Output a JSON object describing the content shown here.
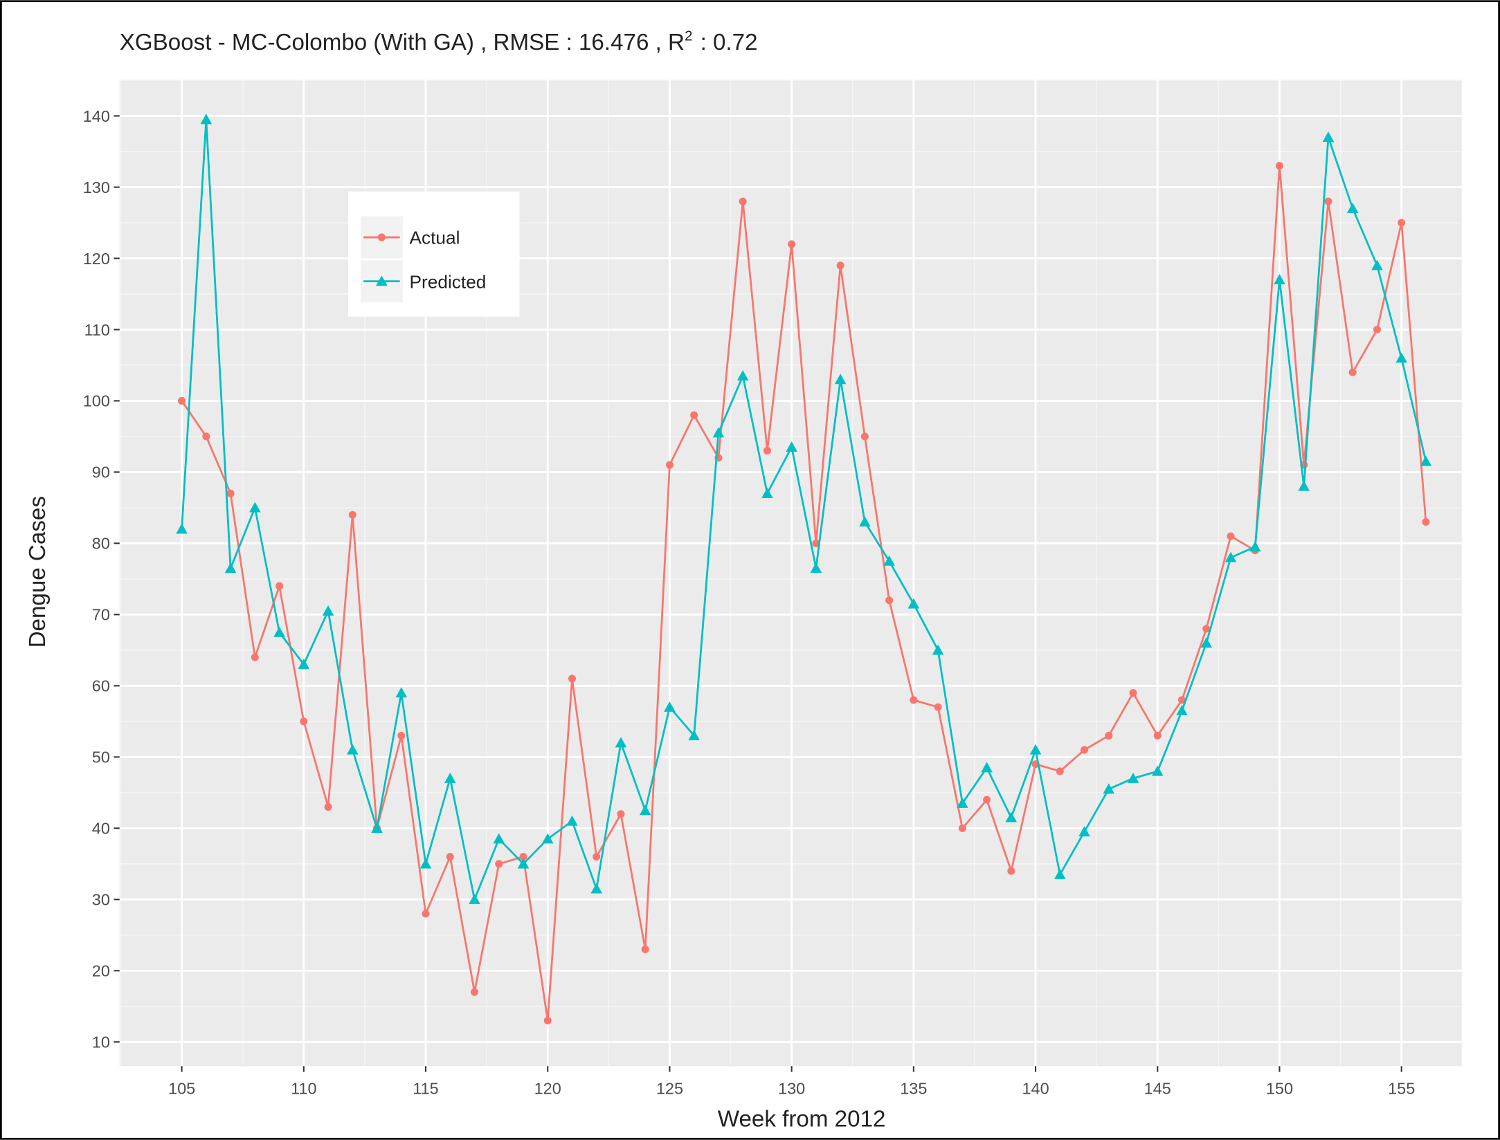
{
  "chart_data": {
    "type": "line",
    "title": "XGBoost - MC-Colombo (With GA) , RMSE : 16.476 ,  R",
    "title_superscript": "2",
    "title_suffix": ":  0.72",
    "x_label": "Week from 2012",
    "y_label": "Dengue Cases",
    "x": [
      105,
      106,
      107,
      108,
      109,
      110,
      111,
      112,
      113,
      114,
      115,
      116,
      117,
      118,
      119,
      120,
      121,
      122,
      123,
      124,
      125,
      126,
      127,
      128,
      129,
      130,
      131,
      132,
      133,
      134,
      135,
      136,
      137,
      138,
      139,
      140,
      141,
      142,
      143,
      144,
      145,
      146,
      147,
      148,
      149,
      150,
      151,
      152,
      153,
      154,
      155,
      156
    ],
    "series": [
      {
        "name": "Actual",
        "color": "#F8766D",
        "marker": "circle",
        "values": [
          100,
          95,
          87,
          64,
          74,
          55,
          43,
          84,
          40,
          53,
          28,
          36,
          17,
          35,
          36,
          13,
          61,
          36,
          42,
          23,
          91,
          98,
          92,
          128,
          93,
          122,
          80,
          119,
          95,
          72,
          58,
          57,
          40,
          44,
          34,
          49,
          48,
          51,
          53,
          59,
          53,
          58,
          68,
          81,
          79,
          133,
          91,
          128,
          104,
          110,
          125,
          83
        ]
      },
      {
        "name": "Predicted",
        "color": "#00BFC4",
        "marker": "triangle",
        "values": [
          82,
          139.5,
          76.5,
          85,
          67.5,
          63,
          70.5,
          51,
          40,
          59,
          35,
          47,
          30,
          38.5,
          35,
          38.5,
          41,
          31.5,
          52,
          42.5,
          57,
          53,
          95.5,
          103.5,
          87,
          93.5,
          76.5,
          103,
          83,
          77.5,
          71.5,
          65,
          43.5,
          48.5,
          41.5,
          51,
          33.5,
          39.5,
          45.5,
          47,
          48,
          56.5,
          66,
          78,
          79.5,
          117,
          88,
          137,
          127,
          119,
          106,
          91.5
        ]
      }
    ],
    "xlim": [
      102.45,
      157.47
    ],
    "ylim": [
      6.6,
      145.1
    ],
    "xticks": [
      105,
      110,
      115,
      120,
      125,
      130,
      135,
      140,
      145,
      150,
      155
    ],
    "yticks": [
      10,
      20,
      30,
      40,
      50,
      60,
      70,
      80,
      90,
      100,
      110,
      120,
      130,
      140
    ],
    "grid": true
  }
}
